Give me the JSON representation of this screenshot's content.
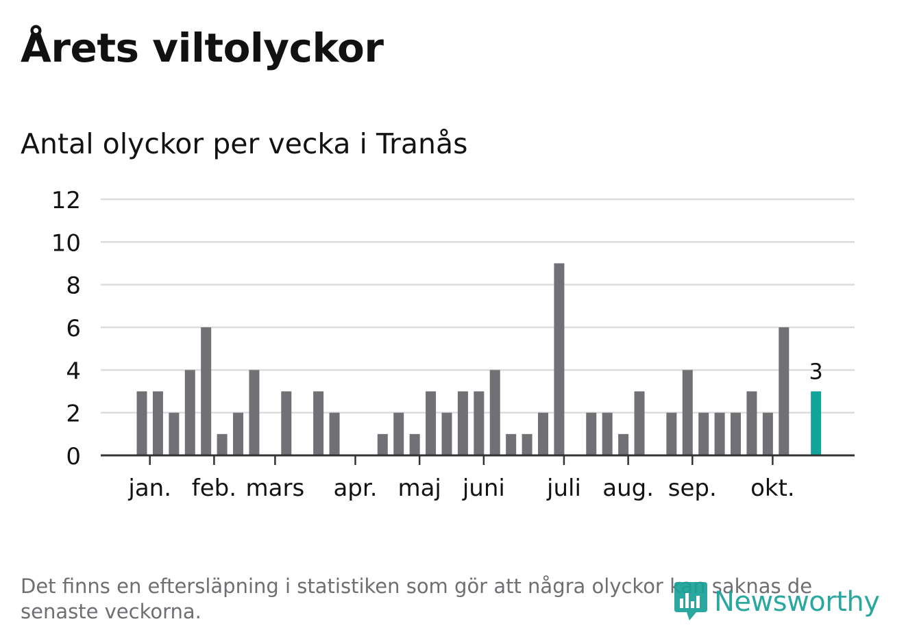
{
  "title": "Årets viltolyckor",
  "subtitle": "Antal olyckor per vecka i Tranås",
  "footnote": "Det finns en eftersläpning i statistiken som gör att några olyckor kan saknas de senaste veckorna.",
  "logo": {
    "text": "Newsworthy",
    "icon": "newsworthy-chart-bubble-icon"
  },
  "colors": {
    "bar": "#717075",
    "highlight": "#11a59a",
    "grid": "#dcdcdc",
    "axis": "#333333",
    "text": "#121212",
    "footnote": "#6f6f73"
  },
  "chart_data": {
    "type": "bar",
    "title": "Antal olyckor per vecka i Tranås",
    "xlabel": "",
    "ylabel": "",
    "ylim": [
      0,
      12
    ],
    "yticks": [
      0,
      2,
      4,
      6,
      8,
      10,
      12
    ],
    "grid": true,
    "weeks": [
      1,
      2,
      3,
      4,
      5,
      6,
      7,
      8,
      9,
      10,
      11,
      12,
      13,
      14,
      15,
      16,
      17,
      18,
      19,
      20,
      21,
      22,
      23,
      24,
      25,
      26,
      27,
      28,
      29,
      30,
      31,
      32,
      33,
      34,
      35,
      36,
      37,
      38,
      39,
      40,
      41,
      42,
      43
    ],
    "values": [
      3,
      3,
      2,
      4,
      6,
      1,
      2,
      4,
      0,
      3,
      0,
      3,
      2,
      0,
      0,
      1,
      2,
      1,
      3,
      2,
      3,
      3,
      4,
      1,
      1,
      2,
      9,
      0,
      2,
      2,
      1,
      3,
      0,
      2,
      4,
      2,
      2,
      2,
      3,
      2,
      6,
      0,
      3
    ],
    "highlight_index": 42,
    "highlight_label": "3",
    "month_labels": [
      {
        "label": "jan.",
        "week": 1.5
      },
      {
        "label": "feb.",
        "week": 5.5
      },
      {
        "label": "mars",
        "week": 9.3
      },
      {
        "label": "apr.",
        "week": 14.3
      },
      {
        "label": "maj",
        "week": 18.3
      },
      {
        "label": "juni",
        "week": 22.3
      },
      {
        "label": "juli",
        "week": 27.3
      },
      {
        "label": "aug.",
        "week": 31.3
      },
      {
        "label": "sep.",
        "week": 35.3
      },
      {
        "label": "okt.",
        "week": 40.3
      }
    ]
  }
}
